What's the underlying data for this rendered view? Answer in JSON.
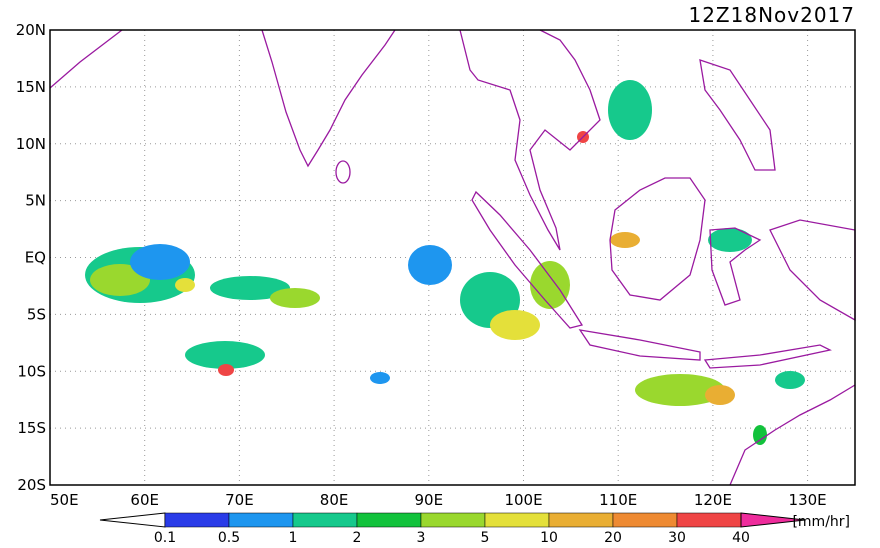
{
  "title": "12Z18Nov2017",
  "lat_labels": [
    "20N",
    "15N",
    "10N",
    "5N",
    "EQ",
    "5S",
    "10S",
    "15S",
    "20S"
  ],
  "lon_labels": [
    "50E",
    "60E",
    "70E",
    "80E",
    "90E",
    "100E",
    "110E",
    "120E",
    "130E"
  ],
  "colorbar": {
    "labels": [
      "0.1",
      "0.5",
      "1",
      "2",
      "3",
      "5",
      "10",
      "20",
      "30",
      "40"
    ],
    "colors": [
      "#ffffff",
      "#2a3ce8",
      "#1e96ef",
      "#16c98c",
      "#12c23c",
      "#9ad82e",
      "#e4e03a",
      "#e9ae33",
      "#ee8a32",
      "#ef4545",
      "#ee2c9c"
    ],
    "unit": "[mm/hr]"
  }
}
